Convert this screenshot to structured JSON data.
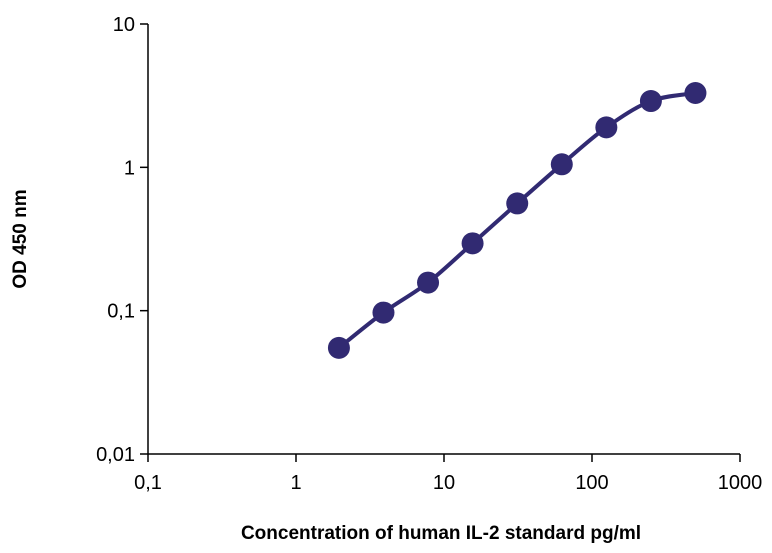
{
  "chart_data": {
    "type": "line",
    "xlabel": "Concentration of human IL-2 standard pg/ml",
    "ylabel": "OD 450 nm",
    "xscale": "log",
    "yscale": "log",
    "xlim": [
      0.1,
      1000
    ],
    "ylim": [
      0.01,
      10
    ],
    "xticks": [
      {
        "value": 0.1,
        "label": "0,1"
      },
      {
        "value": 1,
        "label": "1"
      },
      {
        "value": 10,
        "label": "10"
      },
      {
        "value": 100,
        "label": "100"
      },
      {
        "value": 1000,
        "label": "1000"
      }
    ],
    "yticks": [
      {
        "value": 0.01,
        "label": "0,01"
      },
      {
        "value": 0.1,
        "label": "0,1"
      },
      {
        "value": 1,
        "label": "1"
      },
      {
        "value": 10,
        "label": "10"
      }
    ],
    "grid": false,
    "legend": "none",
    "series": [
      {
        "color": "#312a72",
        "marker": "circle",
        "line": "smooth",
        "points": [
          {
            "x": 1.95,
            "y": 0.055
          },
          {
            "x": 3.9,
            "y": 0.097
          },
          {
            "x": 7.8,
            "y": 0.157
          },
          {
            "x": 15.6,
            "y": 0.295
          },
          {
            "x": 31.25,
            "y": 0.56
          },
          {
            "x": 62.5,
            "y": 1.05
          },
          {
            "x": 125,
            "y": 1.9
          },
          {
            "x": 250,
            "y": 2.9
          },
          {
            "x": 500,
            "y": 3.3
          }
        ]
      }
    ]
  }
}
